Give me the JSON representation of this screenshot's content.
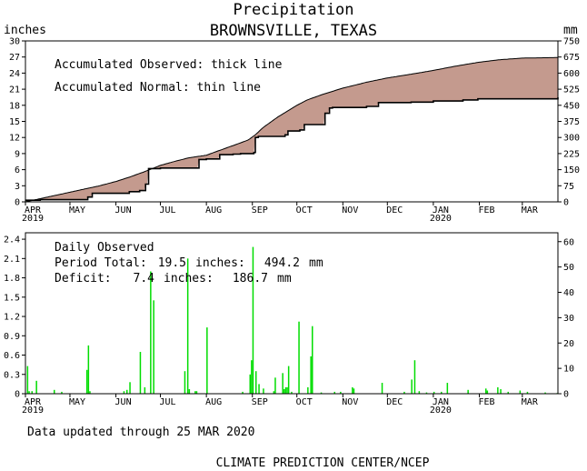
{
  "header": {
    "title": "Precipitation",
    "subtitle": "BROWNSVILLE, TEXAS",
    "left_unit": "inches",
    "right_unit": "mm"
  },
  "colors": {
    "surplus_fill": "#c49a8e",
    "deficit_fill": "#c49a8e",
    "bar": "#00dd00",
    "line": "#000000"
  },
  "month_labels": [
    "APR",
    "MAY",
    "JUN",
    "JUL",
    "AUG",
    "SEP",
    "OCT",
    "NOV",
    "DEC",
    "JAN",
    "FEB",
    "MAR"
  ],
  "year_labels": {
    "start": "2019",
    "jan": "2020"
  },
  "footer": {
    "updated": "Data updated through 25 MAR 2020",
    "credit": "CLIMATE PREDICTION CENTER/NCEP"
  },
  "chart_data": [
    {
      "type": "line",
      "legend": [
        "Accumulated Observed: thick line",
        "Accumulated Normal: thin line"
      ],
      "x_unit": "day since 1 APR 2019",
      "y_left_ticks": [
        "0",
        "3",
        "6",
        "9",
        "12",
        "15",
        "18",
        "21",
        "24",
        "27",
        "30"
      ],
      "y_right_ticks": [
        "0",
        "75",
        "150",
        "225",
        "300",
        "375",
        "450",
        "525",
        "600",
        "675",
        "750"
      ],
      "ylim": [
        0,
        30
      ],
      "normal": [
        [
          0,
          0
        ],
        [
          10,
          0.6
        ],
        [
          20,
          1.2
        ],
        [
          30,
          1.8
        ],
        [
          40,
          2.4
        ],
        [
          50,
          3.0
        ],
        [
          61,
          3.8
        ],
        [
          70,
          4.6
        ],
        [
          80,
          5.6
        ],
        [
          91,
          6.8
        ],
        [
          100,
          7.5
        ],
        [
          110,
          8.2
        ],
        [
          122,
          8.7
        ],
        [
          130,
          9.5
        ],
        [
          140,
          10.5
        ],
        [
          150,
          11.5
        ],
        [
          155,
          12.5
        ],
        [
          160,
          13.8
        ],
        [
          170,
          15.8
        ],
        [
          183,
          18.0
        ],
        [
          190,
          19.0
        ],
        [
          200,
          20.0
        ],
        [
          214,
          21.2
        ],
        [
          230,
          22.3
        ],
        [
          244,
          23.1
        ],
        [
          260,
          23.8
        ],
        [
          275,
          24.5
        ],
        [
          290,
          25.3
        ],
        [
          305,
          26.0
        ],
        [
          320,
          26.5
        ],
        [
          335,
          26.8
        ],
        [
          359,
          26.9
        ]
      ],
      "observed_steps": [
        [
          0,
          0.3
        ],
        [
          10,
          0.4
        ],
        [
          42,
          0.9
        ],
        [
          45,
          1.6
        ],
        [
          67,
          1.6
        ],
        [
          70,
          1.9
        ],
        [
          77,
          2.1
        ],
        [
          81,
          3.3
        ],
        [
          83,
          6.2
        ],
        [
          91,
          6.3
        ],
        [
          115,
          6.3
        ],
        [
          117,
          7.9
        ],
        [
          122,
          8.0
        ],
        [
          129,
          8.0
        ],
        [
          131,
          8.8
        ],
        [
          140,
          8.9
        ],
        [
          145,
          9.0
        ],
        [
          150,
          9.0
        ],
        [
          154,
          9.2
        ],
        [
          155,
          12.0
        ],
        [
          157,
          12.2
        ],
        [
          175,
          12.5
        ],
        [
          177,
          13.2
        ],
        [
          185,
          13.4
        ],
        [
          188,
          14.4
        ],
        [
          198,
          14.4
        ],
        [
          202,
          16.5
        ],
        [
          205,
          17.5
        ],
        [
          207,
          17.6
        ],
        [
          230,
          17.8
        ],
        [
          236,
          17.8
        ],
        [
          238,
          18.5
        ],
        [
          260,
          18.6
        ],
        [
          275,
          18.8
        ],
        [
          295,
          19.0
        ],
        [
          305,
          19.2
        ],
        [
          359,
          19.5
        ]
      ],
      "daily_max_inches": 2.4
    },
    {
      "type": "bar",
      "title": "Daily Observed",
      "stats": [
        {
          "label": "Period Total:",
          "inches": "19.5",
          "mm": "494.2"
        },
        {
          "label": "Deficit:",
          "inches": "7.4",
          "mm": "186.7"
        }
      ],
      "stat_units": {
        "in": "inches:",
        "mm": "mm"
      },
      "y_left_ticks": [
        "0",
        "0.3",
        "0.6",
        "0.9",
        "1.2",
        "1.5",
        "1.8",
        "2.1",
        "2.4"
      ],
      "y_right_ticks": [
        "0",
        "10",
        "20",
        "30",
        "40",
        "50",
        "60"
      ],
      "ylim": [
        0,
        2.5
      ],
      "bars": [
        [
          1,
          0.43
        ],
        [
          2,
          0.04
        ],
        [
          4,
          0.04
        ],
        [
          7,
          0.2
        ],
        [
          19,
          0.06
        ],
        [
          24,
          0.03
        ],
        [
          41,
          0.37
        ],
        [
          42,
          0.75
        ],
        [
          43,
          0.04
        ],
        [
          66,
          0.04
        ],
        [
          68,
          0.06
        ],
        [
          70,
          0.18
        ],
        [
          77,
          0.65
        ],
        [
          80,
          0.1
        ],
        [
          84,
          1.9
        ],
        [
          86,
          1.45
        ],
        [
          107,
          0.35
        ],
        [
          109,
          2.1
        ],
        [
          110,
          0.07
        ],
        [
          114,
          0.04
        ],
        [
          115,
          0.04
        ],
        [
          122,
          1.03
        ],
        [
          146,
          0.03
        ],
        [
          151,
          0.3
        ],
        [
          152,
          0.52
        ],
        [
          153,
          2.28
        ],
        [
          155,
          0.35
        ],
        [
          157,
          0.15
        ],
        [
          160,
          0.08
        ],
        [
          167,
          0.04
        ],
        [
          168,
          0.25
        ],
        [
          173,
          0.32
        ],
        [
          174,
          0.07
        ],
        [
          175,
          0.1
        ],
        [
          176,
          0.1
        ],
        [
          177,
          0.43
        ],
        [
          179,
          0.03
        ],
        [
          184,
          1.12
        ],
        [
          190,
          0.1
        ],
        [
          192,
          0.58
        ],
        [
          193,
          1.05
        ],
        [
          199,
          0.02
        ],
        [
          208,
          0.03
        ],
        [
          212,
          0.03
        ],
        [
          220,
          0.1
        ],
        [
          221,
          0.08
        ],
        [
          240,
          0.17
        ],
        [
          255,
          0.03
        ],
        [
          260,
          0.22
        ],
        [
          262,
          0.52
        ],
        [
          265,
          0.04
        ],
        [
          270,
          0.02
        ],
        [
          275,
          0.03
        ],
        [
          280,
          0.03
        ],
        [
          284,
          0.17
        ],
        [
          298,
          0.06
        ],
        [
          310,
          0.08
        ],
        [
          311,
          0.05
        ],
        [
          318,
          0.1
        ],
        [
          320,
          0.07
        ],
        [
          325,
          0.03
        ],
        [
          333,
          0.05
        ],
        [
          338,
          0.03
        ],
        [
          350,
          0.02
        ],
        [
          358,
          0.01
        ]
      ]
    }
  ]
}
